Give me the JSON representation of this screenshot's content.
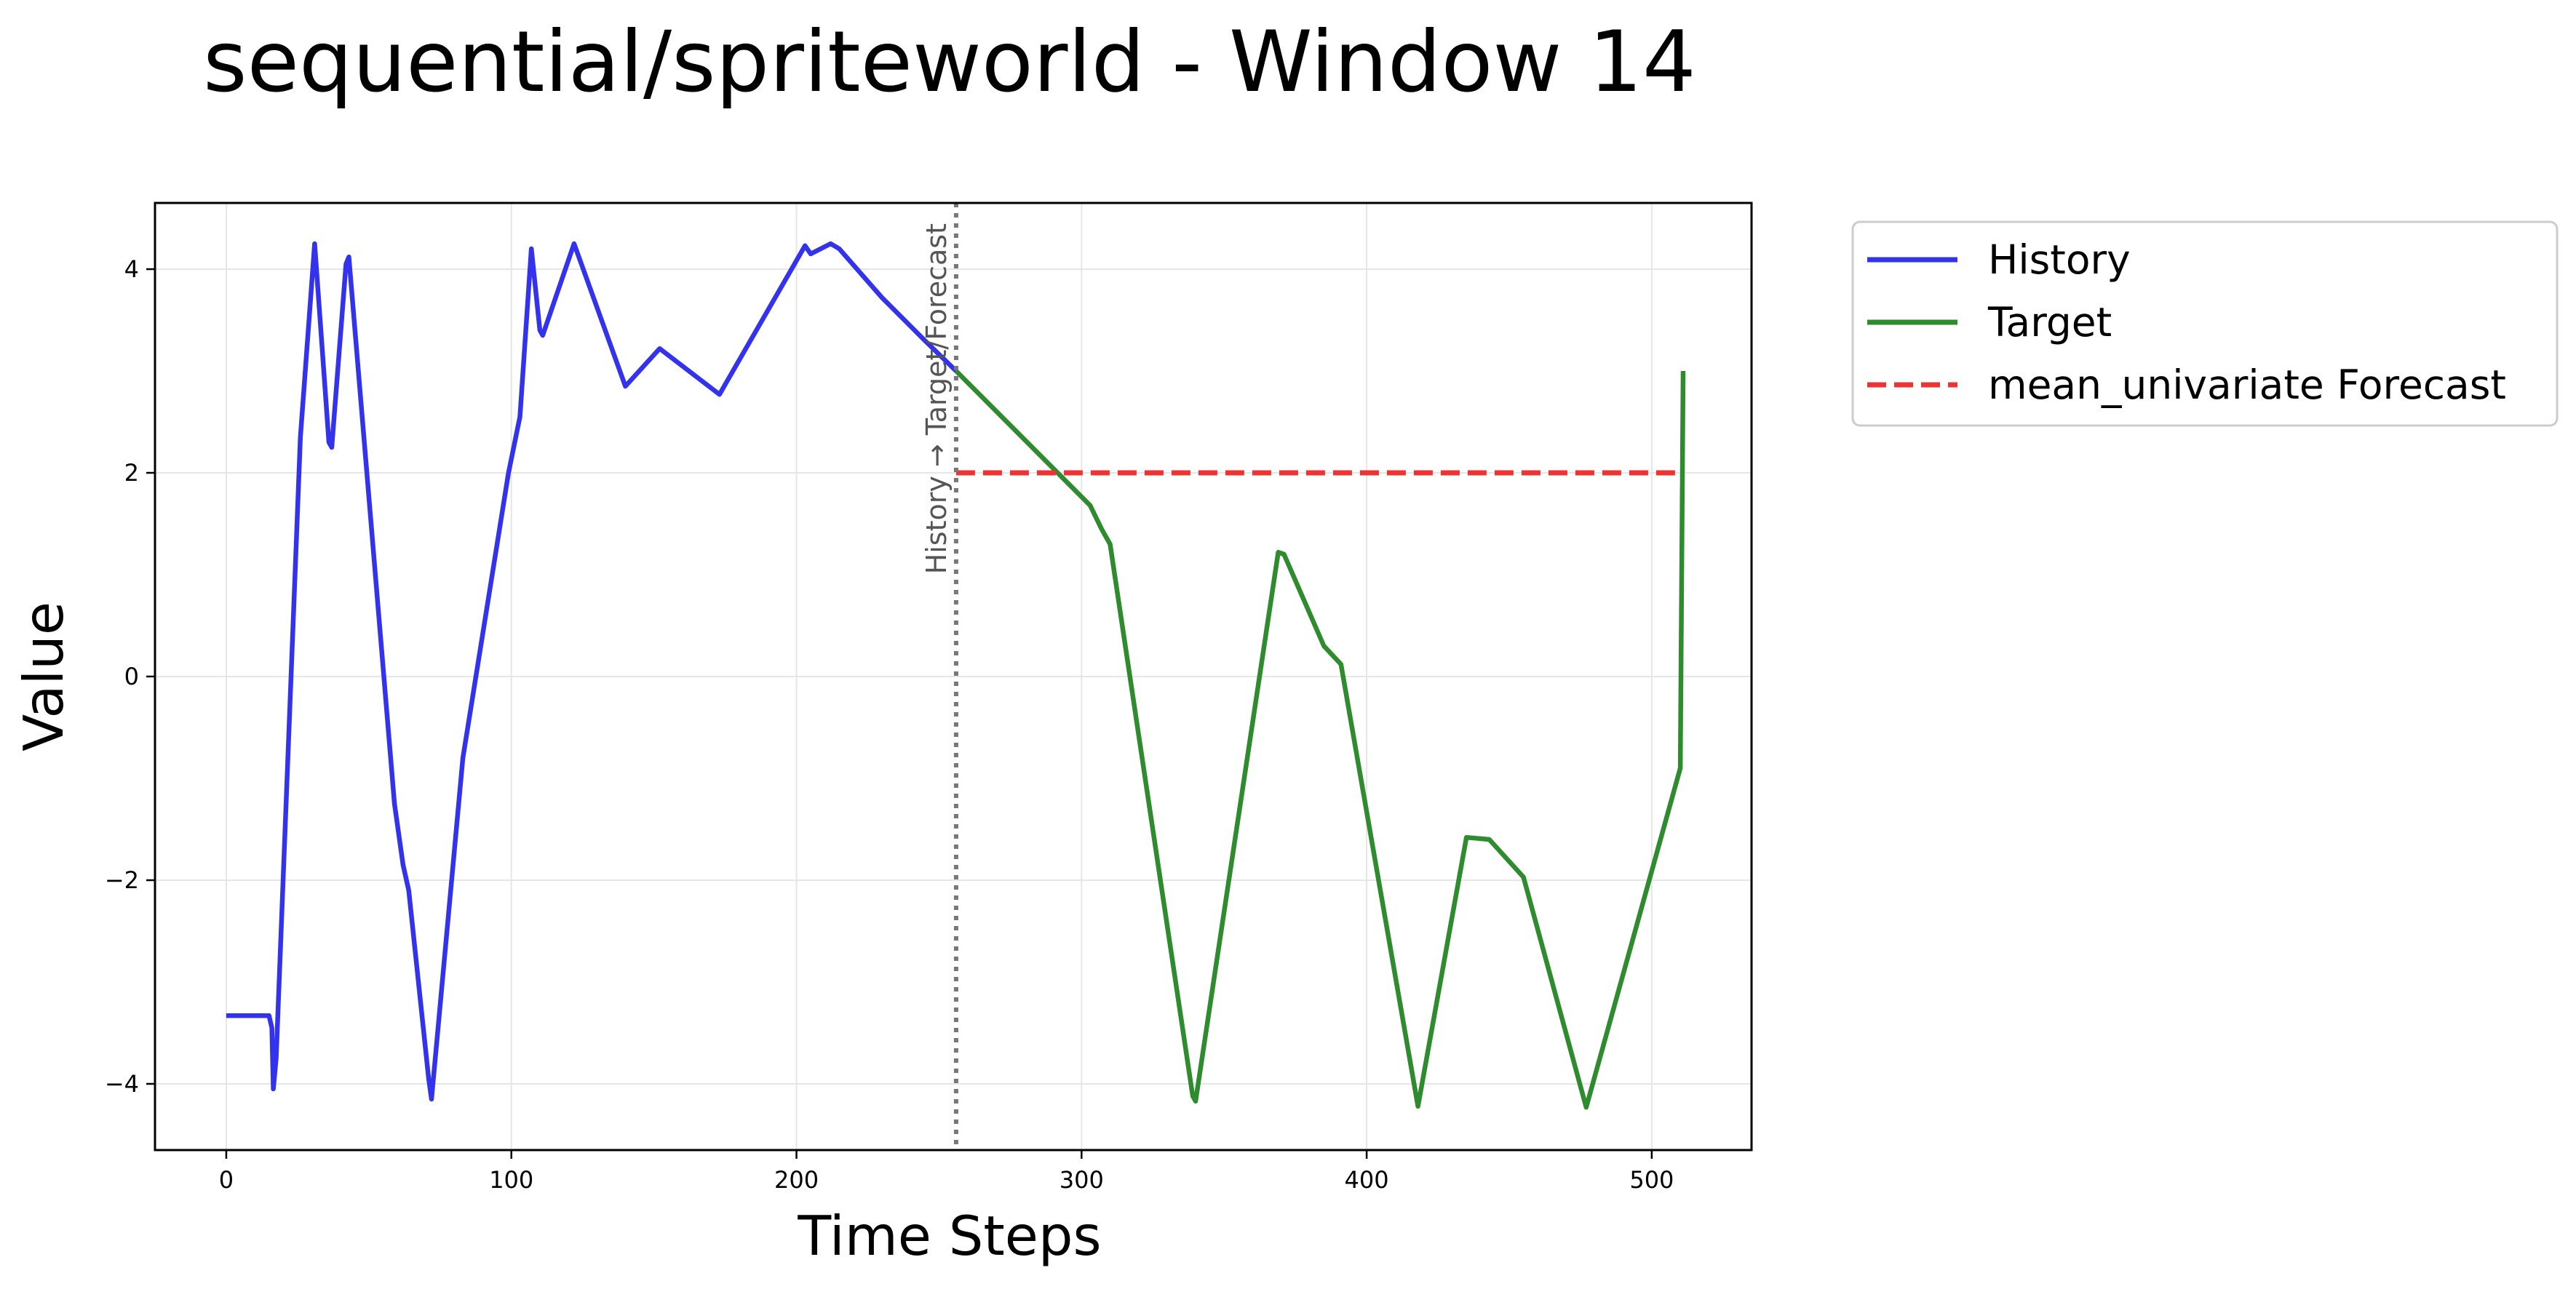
{
  "chart_data": {
    "type": "line",
    "title": "sequential/spriteworld - Window 14",
    "xlabel": "Time Steps",
    "ylabel": "Value",
    "xlim": [
      -25,
      535
    ],
    "ylim": [
      -4.65,
      4.65
    ],
    "xticks": [
      0,
      100,
      200,
      300,
      400,
      500
    ],
    "yticks": [
      -4,
      -2,
      0,
      2,
      4
    ],
    "grid": true,
    "legend_position": "outside-top-right",
    "annotation": {
      "text": "History → Target/Forecast",
      "x": 256
    },
    "series": [
      {
        "name": "History",
        "color": "#3333ee",
        "dash": "solid",
        "points": [
          [
            0,
            -3.33
          ],
          [
            15,
            -3.33
          ],
          [
            16,
            -3.45
          ],
          [
            16.5,
            -4.05
          ],
          [
            17.5,
            -3.75
          ],
          [
            26,
            2.35
          ],
          [
            31,
            4.25
          ],
          [
            36,
            2.3
          ],
          [
            37,
            2.25
          ],
          [
            42,
            4.05
          ],
          [
            43,
            4.12
          ],
          [
            59,
            -1.25
          ],
          [
            62,
            -1.85
          ],
          [
            64,
            -2.1
          ],
          [
            71,
            -3.95
          ],
          [
            72,
            -4.15
          ],
          [
            83,
            -0.8
          ],
          [
            99,
            2.0
          ],
          [
            103,
            2.55
          ],
          [
            107,
            4.2
          ],
          [
            110,
            3.4
          ],
          [
            111,
            3.35
          ],
          [
            122,
            4.25
          ],
          [
            140,
            2.85
          ],
          [
            152,
            3.22
          ],
          [
            173,
            2.77
          ],
          [
            203,
            4.23
          ],
          [
            205,
            4.15
          ],
          [
            212,
            4.25
          ],
          [
            215,
            4.2
          ],
          [
            230,
            3.72
          ],
          [
            245,
            3.3
          ],
          [
            256,
            3.0
          ]
        ]
      },
      {
        "name": "Target",
        "color": "#2e8b2e",
        "dash": "solid",
        "points": [
          [
            256,
            3.0
          ],
          [
            303,
            1.68
          ],
          [
            307,
            1.45
          ],
          [
            310,
            1.3
          ],
          [
            339,
            -4.12
          ],
          [
            340,
            -4.17
          ],
          [
            369,
            1.22
          ],
          [
            371,
            1.2
          ],
          [
            385,
            0.3
          ],
          [
            391,
            0.12
          ],
          [
            418,
            -4.22
          ],
          [
            435,
            -1.58
          ],
          [
            443,
            -1.6
          ],
          [
            455,
            -1.97
          ],
          [
            477,
            -4.23
          ],
          [
            510,
            -0.9
          ],
          [
            511,
            3.0
          ]
        ]
      },
      {
        "name": "mean_univariate Forecast",
        "color": "#ee3333",
        "dash": "dashed",
        "points": [
          [
            256,
            2.0
          ],
          [
            511,
            2.0
          ]
        ]
      }
    ]
  }
}
